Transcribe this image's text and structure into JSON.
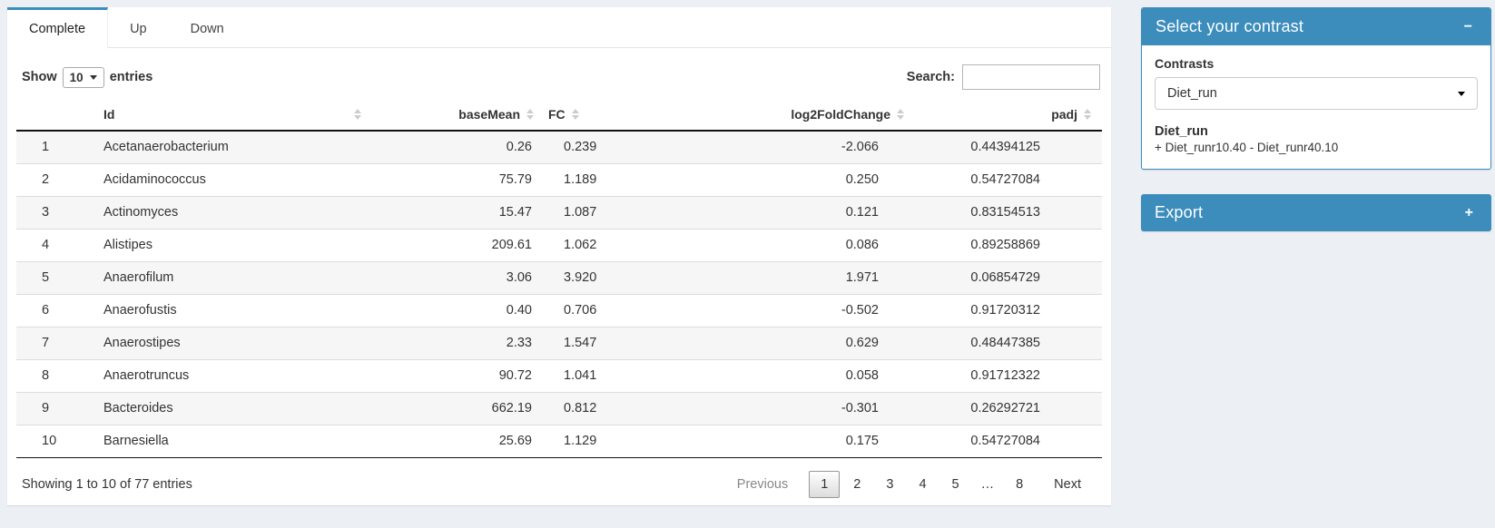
{
  "tabs": [
    {
      "label": "Complete",
      "active": true
    },
    {
      "label": "Up",
      "active": false
    },
    {
      "label": "Down",
      "active": false
    }
  ],
  "controls": {
    "show_label": "Show",
    "page_length": "10",
    "entries_label": "entries",
    "search_label": "Search:",
    "search_value": ""
  },
  "table": {
    "columns": {
      "index": "",
      "id": "Id",
      "baseMean": "baseMean",
      "fc": "FC",
      "log2fc": "log2FoldChange",
      "padj": "padj"
    },
    "rows": [
      {
        "index": "1",
        "id": "Acetanaerobacterium",
        "baseMean": "0.26",
        "fc": "0.239",
        "log2fc": "-2.066",
        "padj": "0.44394125"
      },
      {
        "index": "2",
        "id": "Acidaminococcus",
        "baseMean": "75.79",
        "fc": "1.189",
        "log2fc": "0.250",
        "padj": "0.54727084"
      },
      {
        "index": "3",
        "id": "Actinomyces",
        "baseMean": "15.47",
        "fc": "1.087",
        "log2fc": "0.121",
        "padj": "0.83154513"
      },
      {
        "index": "4",
        "id": "Alistipes",
        "baseMean": "209.61",
        "fc": "1.062",
        "log2fc": "0.086",
        "padj": "0.89258869"
      },
      {
        "index": "5",
        "id": "Anaerofilum",
        "baseMean": "3.06",
        "fc": "3.920",
        "log2fc": "1.971",
        "padj": "0.06854729"
      },
      {
        "index": "6",
        "id": "Anaerofustis",
        "baseMean": "0.40",
        "fc": "0.706",
        "log2fc": "-0.502",
        "padj": "0.91720312"
      },
      {
        "index": "7",
        "id": "Anaerostipes",
        "baseMean": "2.33",
        "fc": "1.547",
        "log2fc": "0.629",
        "padj": "0.48447385"
      },
      {
        "index": "8",
        "id": "Anaerotruncus",
        "baseMean": "90.72",
        "fc": "1.041",
        "log2fc": "0.058",
        "padj": "0.91712322"
      },
      {
        "index": "9",
        "id": "Bacteroides",
        "baseMean": "662.19",
        "fc": "0.812",
        "log2fc": "-0.301",
        "padj": "0.26292721"
      },
      {
        "index": "10",
        "id": "Barnesiella",
        "baseMean": "25.69",
        "fc": "1.129",
        "log2fc": "0.175",
        "padj": "0.54727084"
      }
    ]
  },
  "footer": {
    "info": "Showing 1 to 10 of 77 entries",
    "pagination": {
      "previous_label": "Previous",
      "next_label": "Next",
      "pages": [
        {
          "label": "1",
          "active": true
        },
        {
          "label": "2",
          "active": false
        },
        {
          "label": "3",
          "active": false
        },
        {
          "label": "4",
          "active": false
        },
        {
          "label": "5",
          "active": false
        },
        {
          "label": "…",
          "active": false,
          "disabled": true
        },
        {
          "label": "8",
          "active": false
        }
      ]
    }
  },
  "contrast_panel": {
    "title": "Select your contrast",
    "collapse_icon": "−",
    "contrasts_label": "Contrasts",
    "selected_contrast": "Diet_run",
    "contrast_name": "Diet_run",
    "contrast_formula": "+ Diet_runr10.40 - Diet_runr40.10"
  },
  "export_panel": {
    "title": "Export",
    "expand_icon": "+"
  },
  "colors": {
    "primary": "#3c8dbc",
    "page_background": "#ecf0f5"
  }
}
